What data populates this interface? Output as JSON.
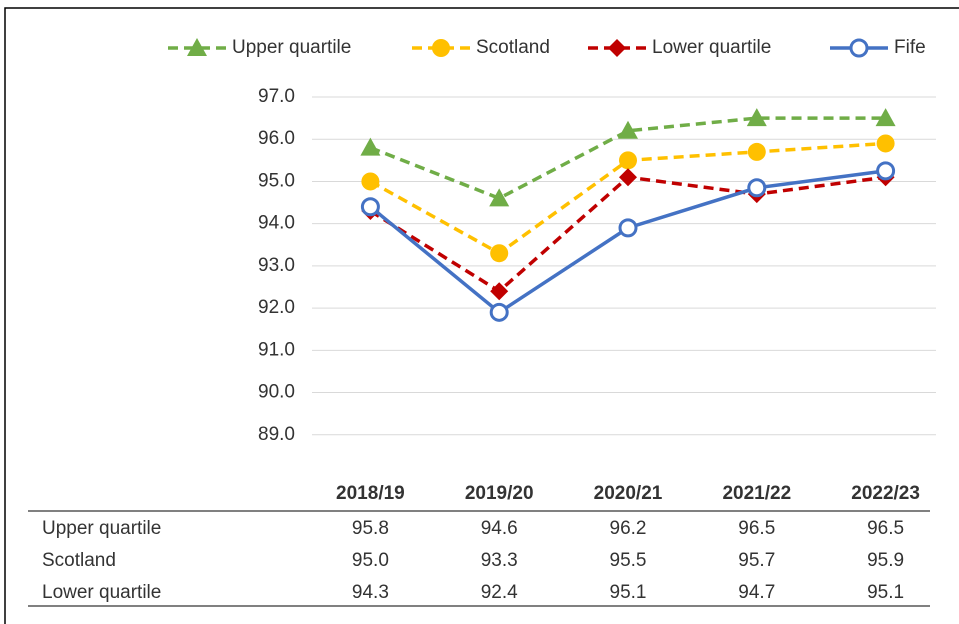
{
  "chart_data": {
    "type": "line",
    "categories": [
      "2018/19",
      "2019/20",
      "2020/21",
      "2021/22",
      "2022/23"
    ],
    "series": [
      {
        "name": "Upper quartile",
        "color": "#70ad47",
        "marker": "triangle",
        "dashed": true,
        "values": [
          95.8,
          94.6,
          96.2,
          96.5,
          96.5
        ],
        "value_labels": [
          "95.8",
          "94.6",
          "96.2",
          "96.5",
          "96.5"
        ]
      },
      {
        "name": "Scotland",
        "color": "#ffc000",
        "marker": "circle",
        "dashed": true,
        "values": [
          95.0,
          93.3,
          95.5,
          95.7,
          95.9
        ],
        "value_labels": [
          "95.0",
          "93.3",
          "95.5",
          "95.7",
          "95.9"
        ]
      },
      {
        "name": "Lower quartile",
        "color": "#c00000",
        "marker": "diamond",
        "dashed": true,
        "values": [
          94.3,
          92.4,
          95.1,
          94.7,
          95.1
        ],
        "value_labels": [
          "94.3",
          "92.4",
          "95.1",
          "94.7",
          "95.1"
        ]
      },
      {
        "name": "Fife",
        "color": "#4472c4",
        "marker": "hollow-circle",
        "dashed": false,
        "values": [
          94.4,
          91.9,
          93.9,
          94.85,
          95.25
        ]
      }
    ],
    "ylim": [
      88,
      97
    ],
    "yticks": [
      {
        "value": 89,
        "label": "89.0"
      },
      {
        "value": 90,
        "label": "90.0"
      },
      {
        "value": 91,
        "label": "91.0"
      },
      {
        "value": 92,
        "label": "92.0"
      },
      {
        "value": 93,
        "label": "93.0"
      },
      {
        "value": 94,
        "label": "94.0"
      },
      {
        "value": 95,
        "label": "95.0"
      },
      {
        "value": 96,
        "label": "96.0"
      },
      {
        "value": 97,
        "label": "97.0"
      }
    ],
    "grid": true,
    "legend": "top"
  }
}
